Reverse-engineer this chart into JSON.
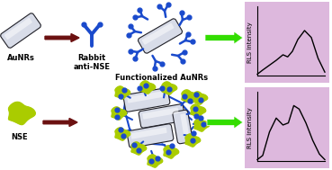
{
  "bg_color": "#ffffff",
  "panel_bg": "#ddb8dd",
  "arrow_color": "#6b1010",
  "green_arrow_color": "#33dd00",
  "top_labels": [
    "AuNRs",
    "Rabbit\nanti-NSE",
    "Functionalized AuNRs"
  ],
  "bottom_labels": [
    "NSE"
  ],
  "rls_label": "RLS intensity",
  "top_curve_x": [
    0.0,
    0.08,
    0.18,
    0.28,
    0.38,
    0.45,
    0.52,
    0.6,
    0.7,
    0.8,
    0.9,
    1.0
  ],
  "top_curve_y": [
    0.02,
    0.08,
    0.15,
    0.22,
    0.3,
    0.27,
    0.35,
    0.52,
    0.65,
    0.55,
    0.25,
    0.05
  ],
  "bottom_curve_x": [
    0.0,
    0.08,
    0.18,
    0.28,
    0.38,
    0.46,
    0.54,
    0.62,
    0.72,
    0.82,
    0.92,
    1.0
  ],
  "bottom_curve_y": [
    0.02,
    0.08,
    0.42,
    0.62,
    0.52,
    0.55,
    0.8,
    0.75,
    0.55,
    0.3,
    0.1,
    0.02
  ],
  "nrod_color_light": "#d8dce8",
  "nrod_color_dark": "#202028",
  "antibody_color": "#1a4acc",
  "nse_color": "#aacc00",
  "font_size_label": 6.0,
  "font_size_rls": 5.0,
  "label_bold": true
}
